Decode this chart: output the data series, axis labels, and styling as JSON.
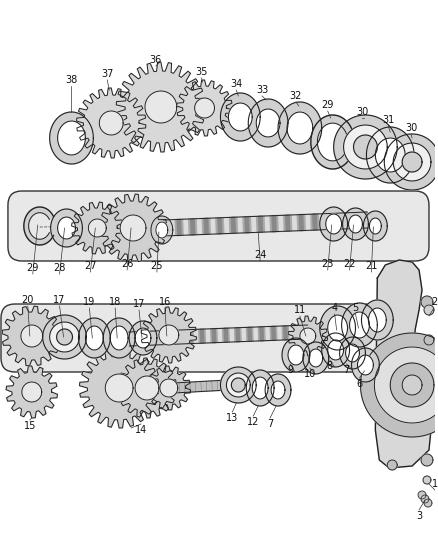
{
  "background": "#ffffff",
  "fw": 4.38,
  "fh": 5.33,
  "dpi": 100,
  "lc": "#222222",
  "fc_light": "#e8e8e8",
  "fc_mid": "#cccccc",
  "fc_dark": "#aaaaaa"
}
